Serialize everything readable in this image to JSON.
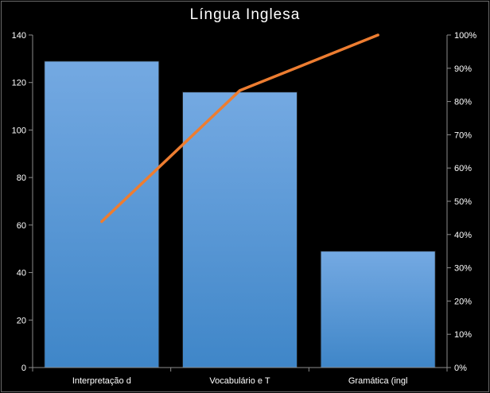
{
  "chart_data": {
    "type": "bar",
    "title": "Língua Inglesa",
    "categories": [
      "Interpretação d",
      "Vocabulário e T",
      "Gramática (ingl"
    ],
    "series": [
      {
        "type": "bar",
        "values": [
          129,
          116,
          49
        ]
      },
      {
        "type": "line",
        "axis": "right",
        "values": [
          0.439,
          0.833,
          1.0
        ]
      }
    ],
    "ylim": [
      0,
      140
    ],
    "yticks": [
      "0",
      "20",
      "40",
      "60",
      "80",
      "100",
      "120",
      "140"
    ],
    "y2lim": [
      0,
      1
    ],
    "y2ticks": [
      "0%",
      "10%",
      "20%",
      "30%",
      "40%",
      "50%",
      "60%",
      "70%",
      "80%",
      "90%",
      "100%"
    ],
    "xlabel": "",
    "ylabel": "",
    "grid": false,
    "legend": "none",
    "colors": {
      "background": "#000000",
      "bar_top": "#74a9e2",
      "bar_bottom": "#3f86c8",
      "bar_border": "#1a1a1a",
      "line": "#ed7d31",
      "axis": "#8c8c8c",
      "text": "#ffffff"
    }
  }
}
